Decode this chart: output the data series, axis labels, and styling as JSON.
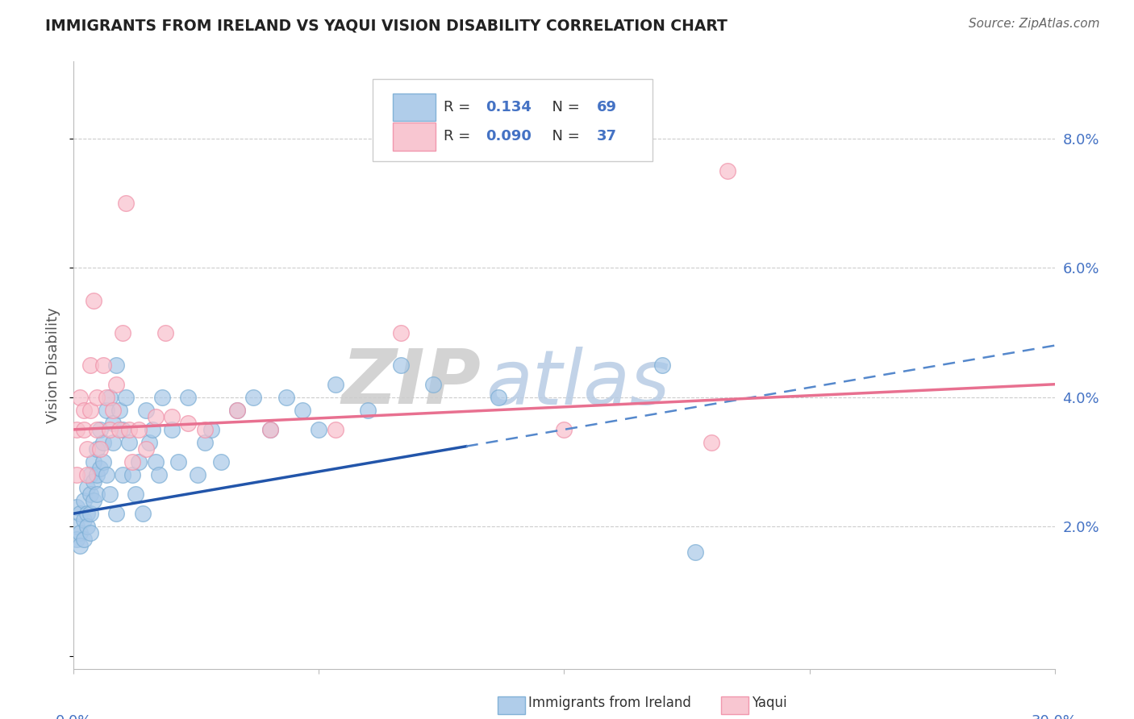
{
  "title": "IMMIGRANTS FROM IRELAND VS YAQUI VISION DISABILITY CORRELATION CHART",
  "source": "Source: ZipAtlas.com",
  "ylabel": "Vision Disability",
  "ytick_values": [
    0.02,
    0.04,
    0.06,
    0.08
  ],
  "ytick_labels": [
    "2.0%",
    "4.0%",
    "6.0%",
    "8.0%"
  ],
  "xlim": [
    0.0,
    0.3
  ],
  "ylim": [
    -0.002,
    0.092
  ],
  "legend_r_blue": "0.134",
  "legend_n_blue": "69",
  "legend_r_pink": "0.090",
  "legend_n_pink": "37",
  "blue_color": "#a8c8e8",
  "blue_edge": "#7aadd4",
  "pink_color": "#f8c0cc",
  "pink_edge": "#f090a8",
  "trendline_blue_solid": "#2255aa",
  "trendline_blue_dash": "#5588cc",
  "trendline_pink": "#e87090",
  "grid_color": "#cccccc",
  "axis_label_color": "#4472c4",
  "watermark_zip_color": "#d0d0d0",
  "watermark_atlas_color": "#b8cce4",
  "blue_x": [
    0.001,
    0.001,
    0.001,
    0.002,
    0.002,
    0.002,
    0.003,
    0.003,
    0.003,
    0.004,
    0.004,
    0.004,
    0.005,
    0.005,
    0.005,
    0.005,
    0.006,
    0.006,
    0.006,
    0.007,
    0.007,
    0.007,
    0.008,
    0.008,
    0.009,
    0.009,
    0.01,
    0.01,
    0.011,
    0.011,
    0.012,
    0.012,
    0.013,
    0.013,
    0.014,
    0.015,
    0.015,
    0.016,
    0.017,
    0.018,
    0.019,
    0.02,
    0.021,
    0.022,
    0.023,
    0.024,
    0.025,
    0.026,
    0.027,
    0.03,
    0.032,
    0.035,
    0.038,
    0.04,
    0.042,
    0.045,
    0.05,
    0.055,
    0.06,
    0.065,
    0.07,
    0.075,
    0.08,
    0.09,
    0.1,
    0.11,
    0.13,
    0.18,
    0.19
  ],
  "blue_y": [
    0.023,
    0.02,
    0.018,
    0.022,
    0.019,
    0.017,
    0.024,
    0.021,
    0.018,
    0.026,
    0.022,
    0.02,
    0.028,
    0.025,
    0.022,
    0.019,
    0.03,
    0.027,
    0.024,
    0.032,
    0.028,
    0.025,
    0.035,
    0.029,
    0.033,
    0.03,
    0.038,
    0.028,
    0.04,
    0.025,
    0.036,
    0.033,
    0.022,
    0.045,
    0.038,
    0.035,
    0.028,
    0.04,
    0.033,
    0.028,
    0.025,
    0.03,
    0.022,
    0.038,
    0.033,
    0.035,
    0.03,
    0.028,
    0.04,
    0.035,
    0.03,
    0.04,
    0.028,
    0.033,
    0.035,
    0.03,
    0.038,
    0.04,
    0.035,
    0.04,
    0.038,
    0.035,
    0.042,
    0.038,
    0.045,
    0.042,
    0.04,
    0.045,
    0.016
  ],
  "pink_x": [
    0.001,
    0.001,
    0.002,
    0.003,
    0.003,
    0.004,
    0.004,
    0.005,
    0.005,
    0.006,
    0.007,
    0.007,
    0.008,
    0.009,
    0.01,
    0.011,
    0.012,
    0.013,
    0.014,
    0.015,
    0.016,
    0.017,
    0.018,
    0.02,
    0.022,
    0.025,
    0.028,
    0.03,
    0.035,
    0.04,
    0.05,
    0.06,
    0.08,
    0.1,
    0.15,
    0.195,
    0.2
  ],
  "pink_y": [
    0.035,
    0.028,
    0.04,
    0.038,
    0.035,
    0.032,
    0.028,
    0.045,
    0.038,
    0.055,
    0.04,
    0.035,
    0.032,
    0.045,
    0.04,
    0.035,
    0.038,
    0.042,
    0.035,
    0.05,
    0.07,
    0.035,
    0.03,
    0.035,
    0.032,
    0.037,
    0.05,
    0.037,
    0.036,
    0.035,
    0.038,
    0.035,
    0.035,
    0.05,
    0.035,
    0.033,
    0.075
  ],
  "blue_trend_x0": 0.0,
  "blue_trend_x_solid_end": 0.12,
  "blue_trend_x1": 0.3,
  "blue_trend_y0": 0.022,
  "blue_trend_y1": 0.048,
  "pink_trend_x0": 0.0,
  "pink_trend_x_solid_end": 0.2,
  "pink_trend_x1": 0.3,
  "pink_trend_y0": 0.035,
  "pink_trend_y1": 0.042
}
